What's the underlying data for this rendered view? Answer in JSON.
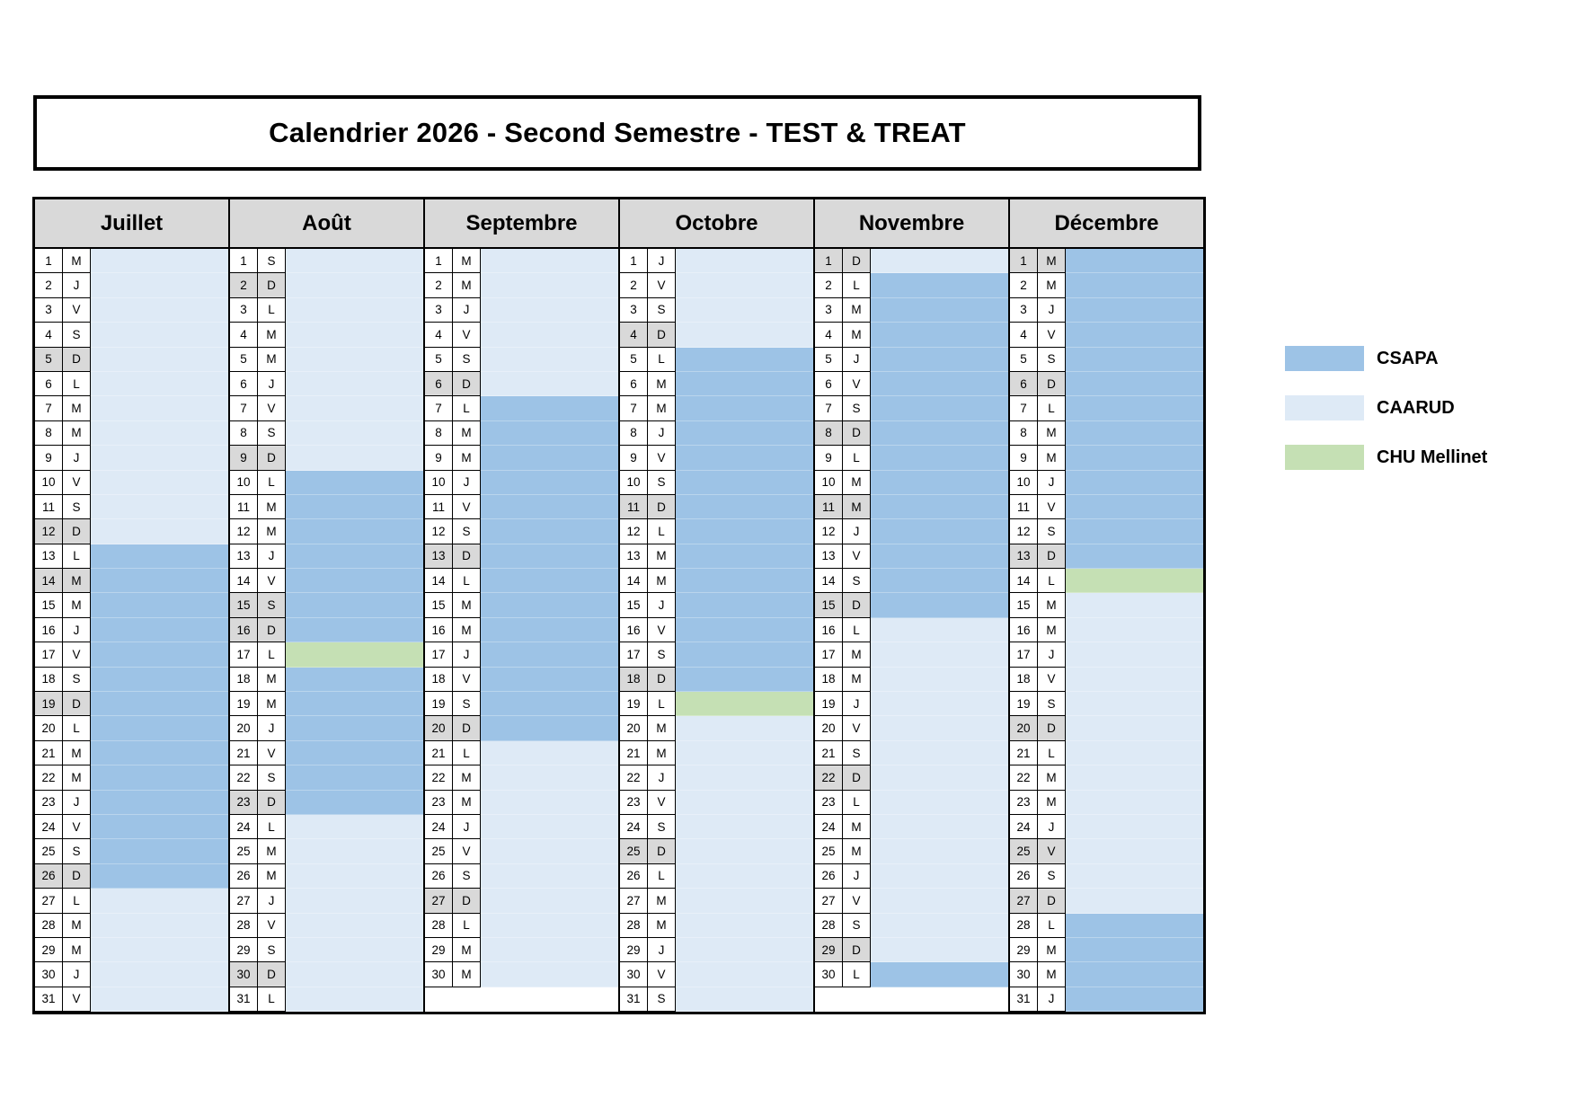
{
  "title": "Calendrier 2026 - Second Semestre - TEST & TREAT",
  "colors": {
    "csapa": "#9DC3E6",
    "caarud": "#DEEAF6",
    "chu": "#C5E0B4",
    "highlight": "#D9D9D9",
    "header_bg": "#D9D9D9",
    "border": "#000000"
  },
  "legend": [
    {
      "label": "CSAPA",
      "org": "csapa"
    },
    {
      "label": "CAARUD",
      "org": "caarud"
    },
    {
      "label": "CHU Mellinet",
      "org": "chu"
    }
  ],
  "months": [
    {
      "name": "Juillet",
      "dows": [
        "M",
        "J",
        "V",
        "S",
        "D",
        "L",
        "M",
        "M",
        "J",
        "V",
        "S",
        "D",
        "L",
        "M",
        "M",
        "J",
        "V",
        "S",
        "D",
        "L",
        "M",
        "M",
        "J",
        "V",
        "S",
        "D",
        "L",
        "M",
        "M",
        "J",
        "V"
      ],
      "highlighted_days": [
        5,
        12,
        14,
        19,
        26
      ],
      "bands": [
        {
          "start": 1,
          "end": 12,
          "org": "caarud"
        },
        {
          "start": 13,
          "end": 26,
          "org": "csapa"
        },
        {
          "start": 27,
          "end": 31,
          "org": "caarud"
        }
      ]
    },
    {
      "name": "Août",
      "dows": [
        "S",
        "D",
        "L",
        "M",
        "M",
        "J",
        "V",
        "S",
        "D",
        "L",
        "M",
        "M",
        "J",
        "V",
        "S",
        "D",
        "L",
        "M",
        "M",
        "J",
        "V",
        "S",
        "D",
        "L",
        "M",
        "M",
        "J",
        "V",
        "S",
        "D",
        "L"
      ],
      "highlighted_days": [
        2,
        9,
        15,
        16,
        23,
        30
      ],
      "bands": [
        {
          "start": 1,
          "end": 9,
          "org": "caarud"
        },
        {
          "start": 10,
          "end": 16,
          "org": "csapa"
        },
        {
          "start": 17,
          "end": 17,
          "org": "chu"
        },
        {
          "start": 18,
          "end": 23,
          "org": "csapa"
        },
        {
          "start": 24,
          "end": 31,
          "org": "caarud"
        }
      ]
    },
    {
      "name": "Septembre",
      "dows": [
        "M",
        "M",
        "J",
        "V",
        "S",
        "D",
        "L",
        "M",
        "M",
        "J",
        "V",
        "S",
        "D",
        "L",
        "M",
        "M",
        "J",
        "V",
        "S",
        "D",
        "L",
        "M",
        "M",
        "J",
        "V",
        "S",
        "D",
        "L",
        "M",
        "M"
      ],
      "highlighted_days": [
        6,
        13,
        20,
        27
      ],
      "bands": [
        {
          "start": 1,
          "end": 6,
          "org": "caarud"
        },
        {
          "start": 7,
          "end": 20,
          "org": "csapa"
        },
        {
          "start": 21,
          "end": 30,
          "org": "caarud"
        }
      ]
    },
    {
      "name": "Octobre",
      "dows": [
        "J",
        "V",
        "S",
        "D",
        "L",
        "M",
        "M",
        "J",
        "V",
        "S",
        "D",
        "L",
        "M",
        "M",
        "J",
        "V",
        "S",
        "D",
        "L",
        "M",
        "M",
        "J",
        "V",
        "S",
        "D",
        "L",
        "M",
        "M",
        "J",
        "V",
        "S"
      ],
      "highlighted_days": [
        4,
        11,
        18,
        25
      ],
      "bands": [
        {
          "start": 1,
          "end": 4,
          "org": "caarud"
        },
        {
          "start": 5,
          "end": 18,
          "org": "csapa"
        },
        {
          "start": 19,
          "end": 19,
          "org": "chu"
        },
        {
          "start": 20,
          "end": 31,
          "org": "caarud"
        }
      ]
    },
    {
      "name": "Novembre",
      "dows": [
        "D",
        "L",
        "M",
        "M",
        "J",
        "V",
        "S",
        "D",
        "L",
        "M",
        "M",
        "J",
        "V",
        "S",
        "D",
        "L",
        "M",
        "M",
        "J",
        "V",
        "S",
        "D",
        "L",
        "M",
        "M",
        "J",
        "V",
        "S",
        "D",
        "L"
      ],
      "highlighted_days": [
        1,
        8,
        11,
        15,
        22,
        29
      ],
      "bands": [
        {
          "start": 1,
          "end": 1,
          "org": "caarud"
        },
        {
          "start": 2,
          "end": 15,
          "org": "csapa"
        },
        {
          "start": 16,
          "end": 29,
          "org": "caarud"
        },
        {
          "start": 30,
          "end": 30,
          "org": "csapa"
        }
      ]
    },
    {
      "name": "Décembre",
      "dows": [
        "M",
        "M",
        "J",
        "V",
        "S",
        "D",
        "L",
        "M",
        "M",
        "J",
        "V",
        "S",
        "D",
        "L",
        "M",
        "M",
        "J",
        "V",
        "S",
        "D",
        "L",
        "M",
        "M",
        "J",
        "V",
        "S",
        "D",
        "L",
        "M",
        "M",
        "J"
      ],
      "highlighted_days": [
        1,
        6,
        13,
        20,
        25,
        27
      ],
      "bands": [
        {
          "start": 1,
          "end": 13,
          "org": "csapa"
        },
        {
          "start": 14,
          "end": 14,
          "org": "chu"
        },
        {
          "start": 15,
          "end": 27,
          "org": "caarud"
        },
        {
          "start": 28,
          "end": 31,
          "org": "csapa"
        }
      ]
    }
  ]
}
